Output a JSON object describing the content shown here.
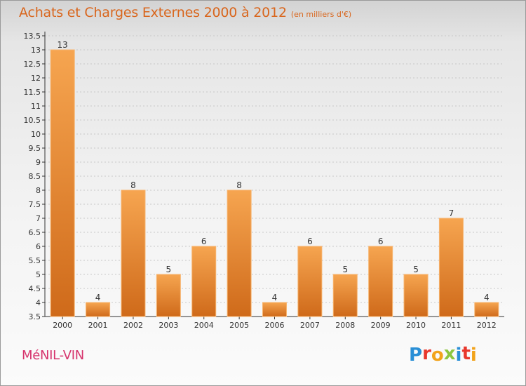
{
  "header": {
    "title": "Achats et Charges Externes 2000 à 2012",
    "subtitle": "(en milliers d'€)"
  },
  "footer": {
    "commune": "MéNIL-VIN",
    "logo": {
      "letters": [
        "P",
        "r",
        "o",
        "x",
        "i",
        "t",
        "i"
      ],
      "colors": [
        "#2a8fd6",
        "#e8372c",
        "#f2a31b",
        "#8cc63f",
        "#2a8fd6",
        "#e8372c",
        "#f2a31b"
      ]
    }
  },
  "colors": {
    "bar_light": "#f6a550",
    "bar_dark": "#cf6a1a",
    "axis": "#333333",
    "grid": "#c8c8c8",
    "text": "#333333"
  },
  "chart_data": {
    "type": "bar",
    "title": "Achats et Charges Externes 2000 à 2012",
    "subtitle": "(en milliers d'€)",
    "categories": [
      "2000",
      "2001",
      "2002",
      "2003",
      "2004",
      "2005",
      "2006",
      "2007",
      "2008",
      "2009",
      "2010",
      "2011",
      "2012"
    ],
    "values": [
      13,
      4,
      8,
      5,
      6,
      8,
      4,
      6,
      5,
      6,
      5,
      7,
      4
    ],
    "ylim": [
      3.5,
      13.5
    ],
    "yticks": [
      "3.5",
      "4",
      "4.5",
      "5",
      "5.5",
      "6",
      "6.5",
      "7",
      "7.5",
      "8",
      "8.5",
      "9",
      "9.5",
      "10",
      "10.5",
      "11",
      "11.5",
      "12",
      "12.5",
      "13",
      "13.5"
    ],
    "grid": true,
    "xlabel": "",
    "ylabel": ""
  }
}
